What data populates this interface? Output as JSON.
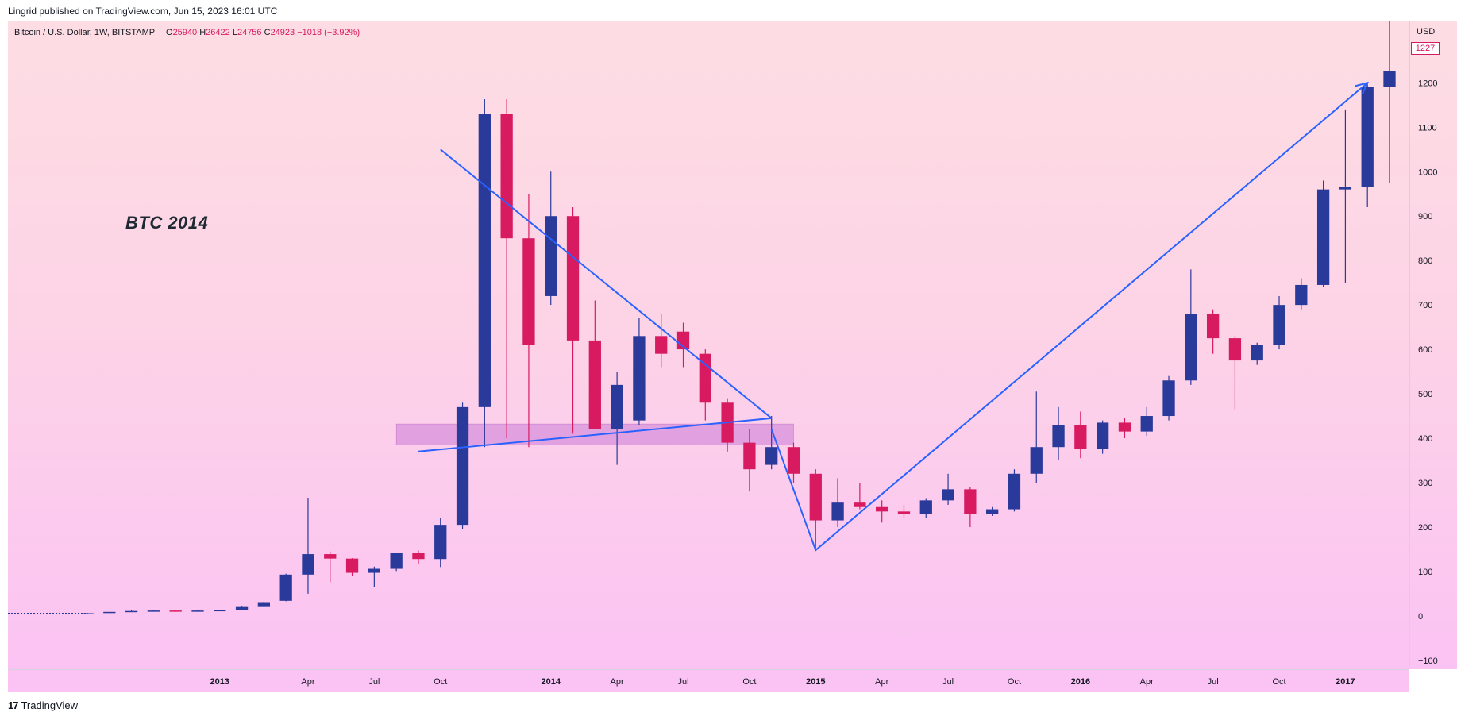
{
  "header": {
    "published_text": "Lingrid published on TradingView.com, Jun 15, 2023 16:01 UTC"
  },
  "legend": {
    "symbol": "Bitcoin / U.S. Dollar, 1W, BITSTAMP",
    "open_label": "O",
    "open_value": "25940",
    "high_label": "H",
    "high_value": "26422",
    "low_label": "L",
    "low_value": "24756",
    "close_label": "C",
    "close_value": "24923",
    "change": "−1018 (−3.92%)"
  },
  "annotation_title": "BTC 2014",
  "footer": {
    "logo": "17",
    "brand": "TradingView"
  },
  "price_axis": {
    "currency": "USD",
    "current_price_badge": "1227",
    "ticks": [
      "1200",
      "1100",
      "1000",
      "900",
      "800",
      "700",
      "600",
      "500",
      "400",
      "300",
      "200",
      "100",
      "0",
      "−100"
    ]
  },
  "colors": {
    "up": "#2a3a9a",
    "down": "#d81b60",
    "trendline": "#2962ff",
    "zone": "#d68fdb"
  },
  "chart_data": {
    "type": "candlestick",
    "title": "Bitcoin / U.S. Dollar, 1W, BITSTAMP",
    "xlabel": "",
    "ylabel": "USD",
    "ylim": [
      -120,
      1340
    ],
    "x_ticks": [
      "2013",
      "Apr",
      "Jul",
      "Oct",
      "2014",
      "Apr",
      "Jul",
      "Oct",
      "2015",
      "Apr",
      "Jul",
      "Oct",
      "2016",
      "Apr",
      "Jul",
      "Oct",
      "2017"
    ],
    "y_ticks": [
      1200,
      1100,
      1000,
      900,
      800,
      700,
      600,
      500,
      400,
      300,
      200,
      100,
      0,
      -100
    ],
    "grid": false,
    "series": [
      {
        "name": "",
        "candles": [
          {
            "d": "2012-06",
            "o": 6,
            "h": 7,
            "l": 5,
            "c": 6
          },
          {
            "d": "2012-07",
            "o": 7,
            "h": 9,
            "l": 7,
            "c": 9
          },
          {
            "d": "2012-08",
            "o": 10,
            "h": 14,
            "l": 9,
            "c": 11
          },
          {
            "d": "2012-09",
            "o": 11,
            "h": 13,
            "l": 11,
            "c": 12
          },
          {
            "d": "2012-10",
            "o": 12,
            "h": 12,
            "l": 10,
            "c": 11
          },
          {
            "d": "2012-11",
            "o": 11,
            "h": 13,
            "l": 10,
            "c": 12
          },
          {
            "d": "2012-12",
            "o": 12,
            "h": 14,
            "l": 12,
            "c": 13
          },
          {
            "d": "2013-01",
            "o": 13,
            "h": 21,
            "l": 13,
            "c": 20
          },
          {
            "d": "2013-02",
            "o": 20,
            "h": 32,
            "l": 20,
            "c": 31
          },
          {
            "d": "2013-03",
            "o": 34,
            "h": 95,
            "l": 33,
            "c": 93
          },
          {
            "d": "2013-04",
            "o": 93,
            "h": 266,
            "l": 50,
            "c": 139
          },
          {
            "d": "2013-05",
            "o": 139,
            "h": 145,
            "l": 76,
            "c": 129
          },
          {
            "d": "2013-06",
            "o": 129,
            "h": 130,
            "l": 89,
            "c": 97
          },
          {
            "d": "2013-07",
            "o": 97,
            "h": 111,
            "l": 65,
            "c": 106
          },
          {
            "d": "2013-08",
            "o": 106,
            "h": 140,
            "l": 101,
            "c": 141
          },
          {
            "d": "2013-09",
            "o": 141,
            "h": 147,
            "l": 117,
            "c": 128
          },
          {
            "d": "2013-10",
            "o": 128,
            "h": 220,
            "l": 110,
            "c": 205
          },
          {
            "d": "2013-11-a",
            "o": 205,
            "h": 480,
            "l": 195,
            "c": 470
          },
          {
            "d": "2013-11-b",
            "o": 470,
            "h": 1163,
            "l": 380,
            "c": 1130
          },
          {
            "d": "2013-12-a",
            "o": 1130,
            "h": 1163,
            "l": 400,
            "c": 850
          },
          {
            "d": "2013-12-b",
            "o": 850,
            "h": 950,
            "l": 380,
            "c": 610
          },
          {
            "d": "2014-01",
            "o": 720,
            "h": 1000,
            "l": 700,
            "c": 900
          },
          {
            "d": "2014-02",
            "o": 900,
            "h": 920,
            "l": 410,
            "c": 620
          },
          {
            "d": "2014-03",
            "o": 620,
            "h": 710,
            "l": 420,
            "c": 420
          },
          {
            "d": "2014-04",
            "o": 420,
            "h": 550,
            "l": 340,
            "c": 520
          },
          {
            "d": "2014-05",
            "o": 440,
            "h": 670,
            "l": 430,
            "c": 630
          },
          {
            "d": "2014-06",
            "o": 630,
            "h": 680,
            "l": 560,
            "c": 590
          },
          {
            "d": "2014-07",
            "o": 640,
            "h": 660,
            "l": 560,
            "c": 600
          },
          {
            "d": "2014-08",
            "o": 590,
            "h": 600,
            "l": 440,
            "c": 480
          },
          {
            "d": "2014-09",
            "o": 480,
            "h": 490,
            "l": 370,
            "c": 390
          },
          {
            "d": "2014-10",
            "o": 390,
            "h": 420,
            "l": 280,
            "c": 330
          },
          {
            "d": "2014-11",
            "o": 340,
            "h": 450,
            "l": 330,
            "c": 380
          },
          {
            "d": "2014-12",
            "o": 380,
            "h": 390,
            "l": 300,
            "c": 320
          },
          {
            "d": "2015-01",
            "o": 320,
            "h": 330,
            "l": 152,
            "c": 215
          },
          {
            "d": "2015-02",
            "o": 215,
            "h": 310,
            "l": 200,
            "c": 255
          },
          {
            "d": "2015-03",
            "o": 255,
            "h": 300,
            "l": 240,
            "c": 245
          },
          {
            "d": "2015-04",
            "o": 245,
            "h": 260,
            "l": 210,
            "c": 235
          },
          {
            "d": "2015-05",
            "o": 235,
            "h": 250,
            "l": 220,
            "c": 230
          },
          {
            "d": "2015-06",
            "o": 230,
            "h": 265,
            "l": 220,
            "c": 260
          },
          {
            "d": "2015-07",
            "o": 260,
            "h": 320,
            "l": 250,
            "c": 285
          },
          {
            "d": "2015-08",
            "o": 285,
            "h": 290,
            "l": 200,
            "c": 230
          },
          {
            "d": "2015-09",
            "o": 230,
            "h": 245,
            "l": 225,
            "c": 240
          },
          {
            "d": "2015-10",
            "o": 240,
            "h": 330,
            "l": 235,
            "c": 320
          },
          {
            "d": "2015-11",
            "o": 320,
            "h": 505,
            "l": 300,
            "c": 380
          },
          {
            "d": "2015-12",
            "o": 380,
            "h": 470,
            "l": 350,
            "c": 430
          },
          {
            "d": "2016-01",
            "o": 430,
            "h": 460,
            "l": 355,
            "c": 375
          },
          {
            "d": "2016-02",
            "o": 375,
            "h": 440,
            "l": 365,
            "c": 435
          },
          {
            "d": "2016-03",
            "o": 435,
            "h": 445,
            "l": 400,
            "c": 415
          },
          {
            "d": "2016-04",
            "o": 415,
            "h": 470,
            "l": 405,
            "c": 450
          },
          {
            "d": "2016-05",
            "o": 450,
            "h": 540,
            "l": 440,
            "c": 530
          },
          {
            "d": "2016-06",
            "o": 530,
            "h": 780,
            "l": 520,
            "c": 680
          },
          {
            "d": "2016-07",
            "o": 680,
            "h": 690,
            "l": 590,
            "c": 625
          },
          {
            "d": "2016-08",
            "o": 625,
            "h": 630,
            "l": 465,
            "c": 575
          },
          {
            "d": "2016-09",
            "o": 575,
            "h": 615,
            "l": 565,
            "c": 610
          },
          {
            "d": "2016-10",
            "o": 610,
            "h": 720,
            "l": 600,
            "c": 700
          },
          {
            "d": "2016-11",
            "o": 700,
            "h": 760,
            "l": 690,
            "c": 745
          },
          {
            "d": "2016-12",
            "o": 745,
            "h": 980,
            "l": 740,
            "c": 960
          },
          {
            "d": "2017-01",
            "o": 960,
            "h": 1140,
            "l": 750,
            "c": 965
          },
          {
            "d": "2017-02",
            "o": 965,
            "h": 1200,
            "l": 920,
            "c": 1190
          },
          {
            "d": "2017-03",
            "o": 1190,
            "h": 1340,
            "l": 975,
            "c": 1227
          }
        ]
      }
    ],
    "annotations": {
      "text": "BTC 2014",
      "descending_trendline": [
        [
          "2013-10",
          1050
        ],
        [
          "2014-11",
          445
        ]
      ],
      "ascending_trendline": [
        [
          "2013-09",
          370
        ],
        [
          "2014-11",
          445
        ]
      ],
      "support_zone": {
        "from": "2013-08",
        "to": "2014-12",
        "low": 385,
        "high": 432
      },
      "arrow_path": [
        [
          "2014-11",
          420
        ],
        [
          "2015-01",
          148
        ],
        [
          "2017-02",
          1200
        ]
      ]
    }
  }
}
